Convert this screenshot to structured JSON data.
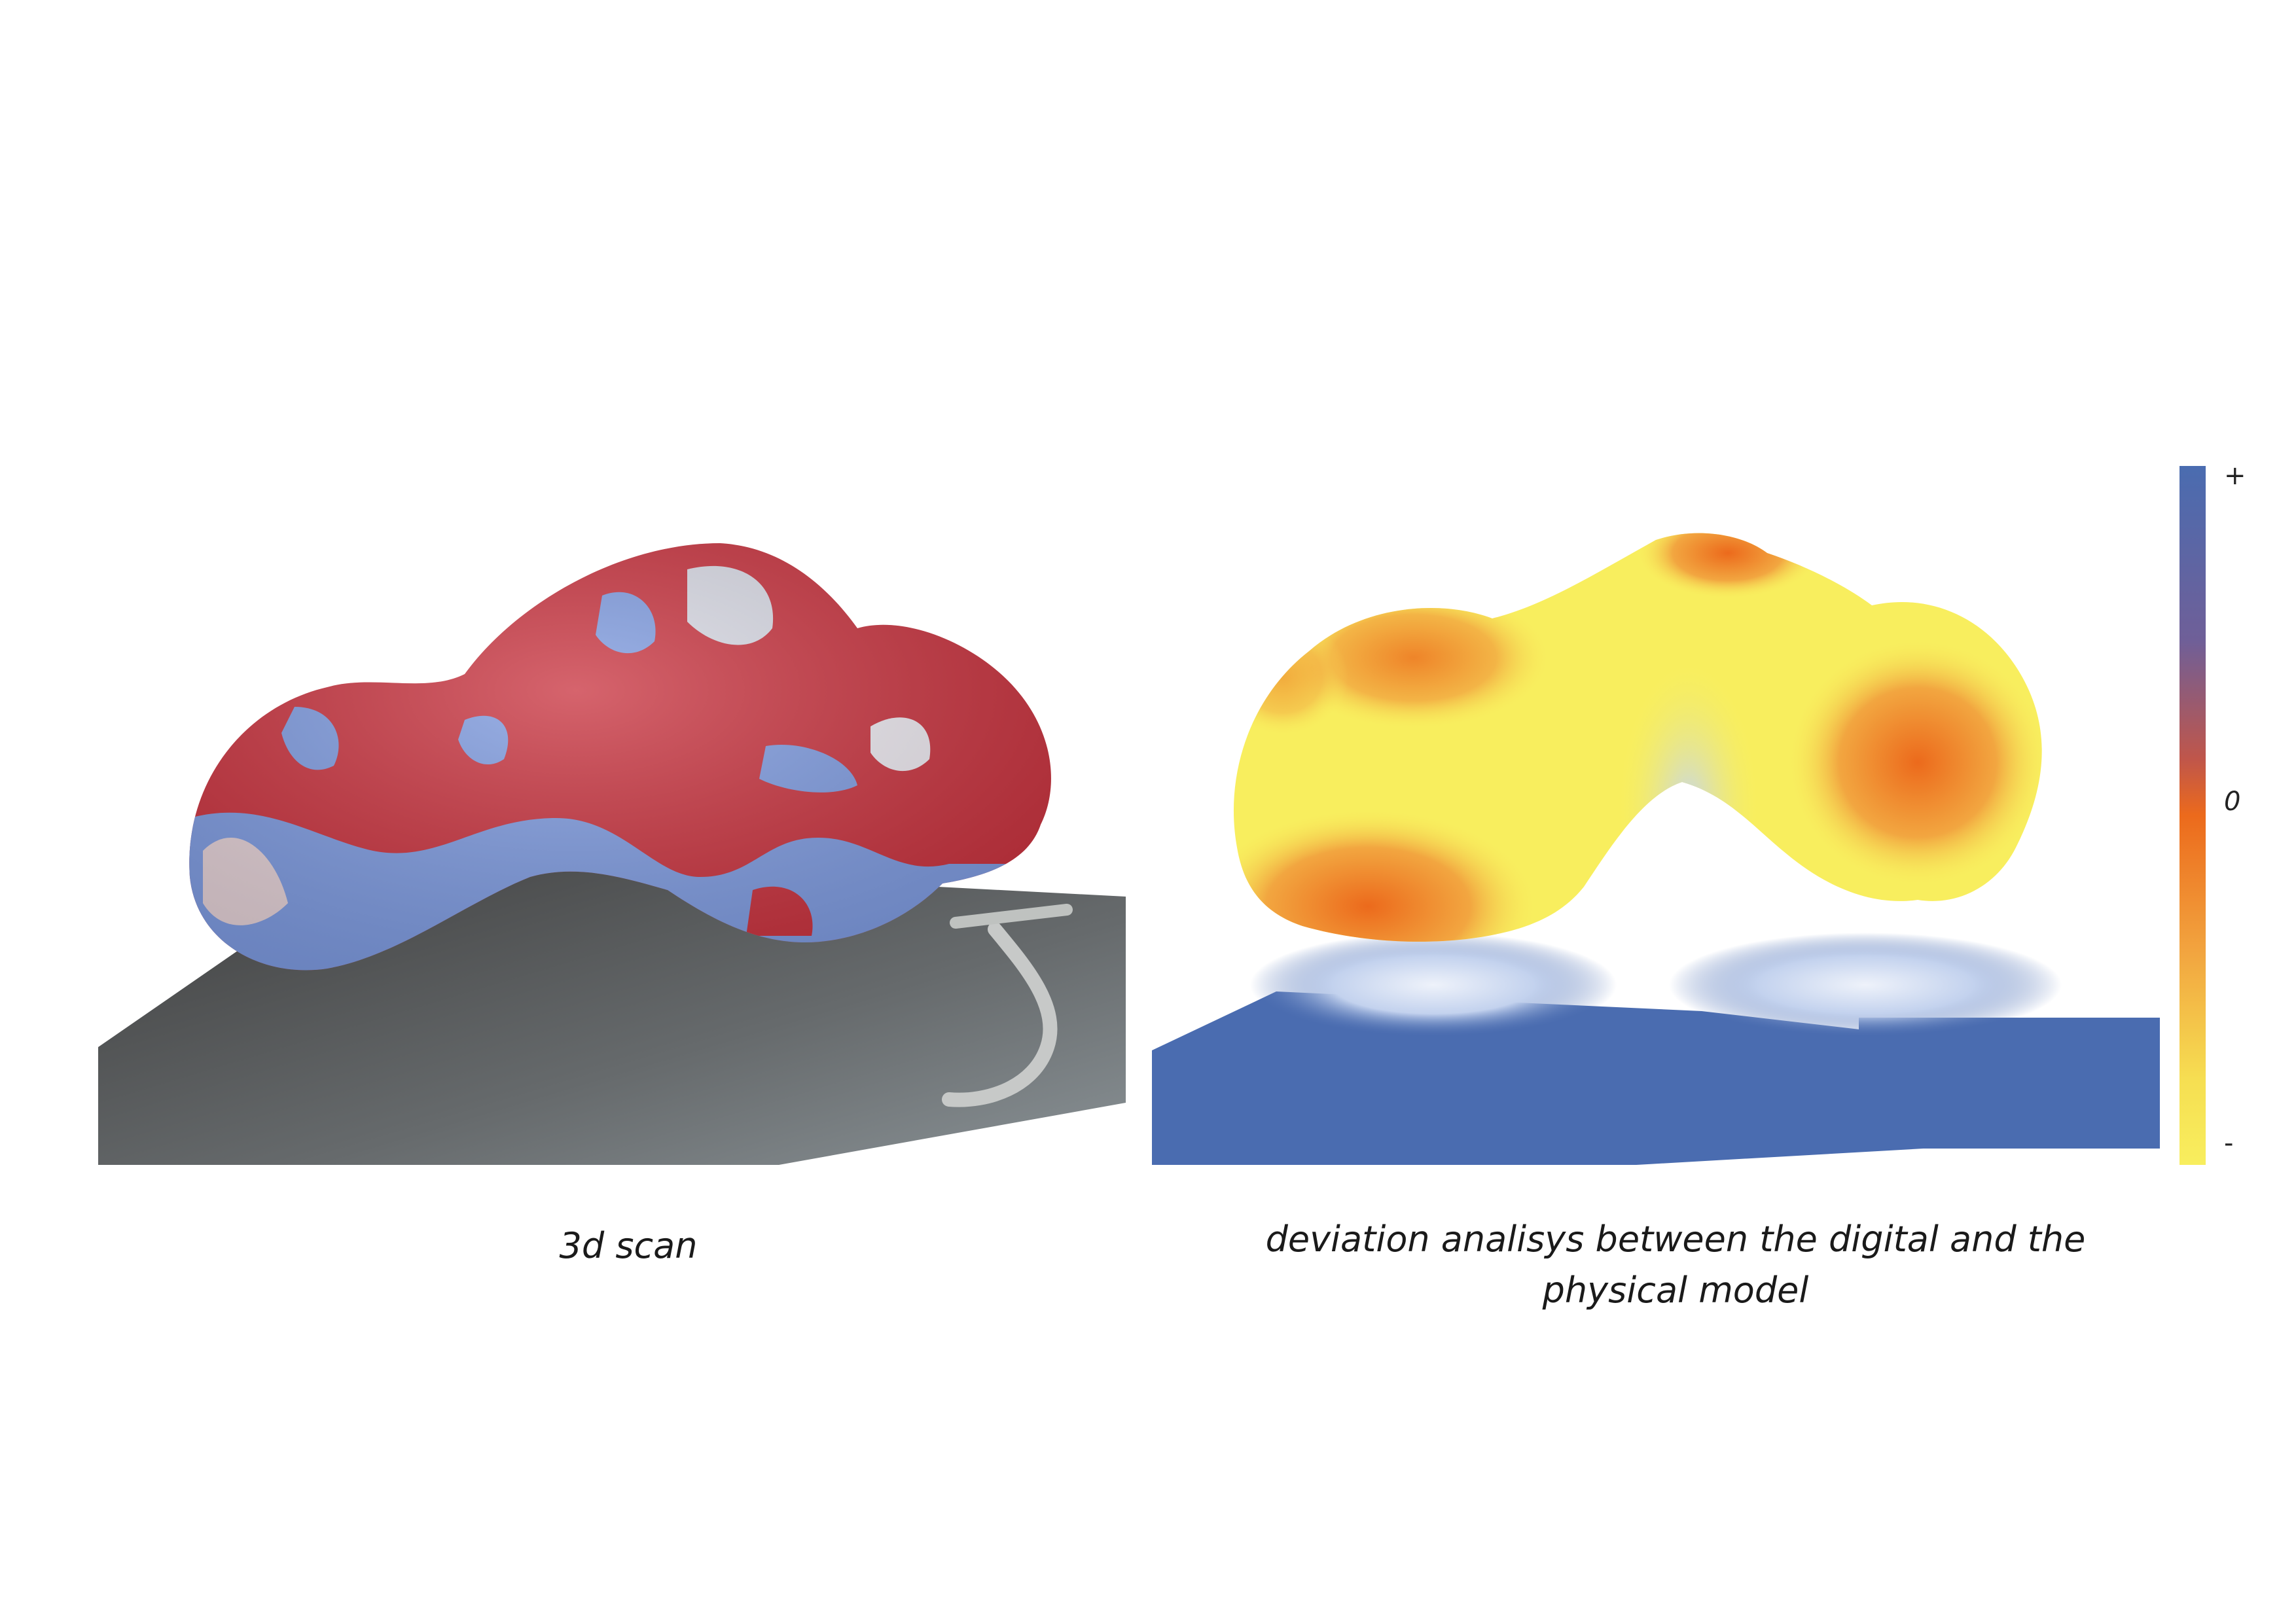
{
  "figure": {
    "left_caption": "3d scan",
    "right_caption": "deviation analisys between the digital and the physical model",
    "legend": {
      "max_label": "+",
      "mid_label": "0",
      "min_label": "-"
    },
    "colors": {
      "scan_red": "#c8303c",
      "scan_blue": "#7d9ae0",
      "scan_ground": "#5a5a5a",
      "deviation_high": "#4a6cb0",
      "deviation_zero": "#ec6a1c",
      "deviation_low": "#f8ee5e"
    }
  }
}
